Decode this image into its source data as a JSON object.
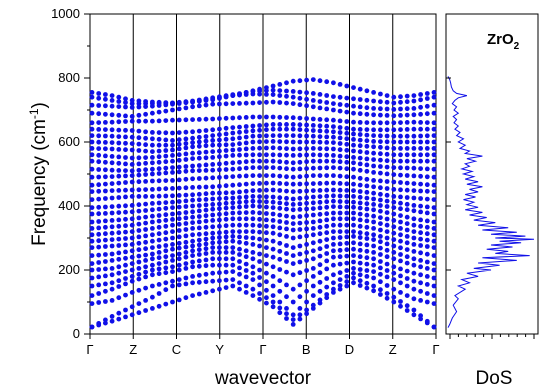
{
  "chart_data": [
    {
      "type": "scatter",
      "panel": "phonon-dispersion",
      "xlabel": "wavevector",
      "ylabel": "Frequency (cm-1)",
      "ylabel_parts": {
        "main": "Frequency (cm",
        "sup": "-1",
        "end": ")"
      },
      "ylim": [
        0,
        1000
      ],
      "yticks": [
        "0",
        "200",
        "400",
        "600",
        "800",
        "1000"
      ],
      "ytick_values": [
        0,
        200,
        400,
        600,
        800,
        1000
      ],
      "kpath": [
        "Γ",
        "Z",
        "C",
        "Y",
        "Γ",
        "B",
        "D",
        "Z",
        "Γ"
      ],
      "marker_color": "#1010e8",
      "grid": false,
      "series": [
        {
          "values": [
            22,
            40,
            60,
            80,
            100,
            120,
            135,
            150,
            120,
            85,
            30,
            80,
            130,
            160,
            135,
            100,
            60,
            22
          ]
        },
        {
          "values": [
            22,
            55,
            85,
            115,
            150,
            160,
            165,
            170,
            140,
            100,
            45,
            90,
            140,
            175,
            150,
            115,
            75,
            22
          ]
        },
        {
          "values": [
            95,
            105,
            130,
            150,
            165,
            180,
            190,
            195,
            170,
            120,
            60,
            120,
            160,
            190,
            175,
            140,
            110,
            95
          ]
        },
        {
          "values": [
            120,
            140,
            165,
            185,
            195,
            210,
            215,
            215,
            190,
            150,
            100,
            150,
            185,
            205,
            195,
            170,
            140,
            120
          ]
        },
        {
          "values": [
            150,
            160,
            180,
            200,
            210,
            225,
            235,
            235,
            210,
            180,
            140,
            180,
            215,
            225,
            215,
            190,
            165,
            150
          ]
        },
        {
          "values": [
            175,
            185,
            200,
            215,
            230,
            245,
            255,
            255,
            235,
            210,
            185,
            205,
            240,
            245,
            235,
            210,
            190,
            175
          ]
        },
        {
          "values": [
            200,
            205,
            220,
            235,
            245,
            260,
            270,
            270,
            255,
            240,
            220,
            235,
            260,
            265,
            255,
            235,
            215,
            200
          ]
        },
        {
          "values": [
            220,
            230,
            240,
            250,
            265,
            275,
            285,
            290,
            280,
            265,
            245,
            260,
            280,
            285,
            275,
            255,
            235,
            220
          ]
        },
        {
          "values": [
            245,
            250,
            260,
            270,
            280,
            290,
            300,
            305,
            300,
            290,
            270,
            285,
            300,
            305,
            295,
            275,
            258,
            245
          ]
        },
        {
          "values": [
            270,
            275,
            280,
            290,
            300,
            310,
            315,
            320,
            320,
            315,
            300,
            310,
            320,
            320,
            310,
            295,
            280,
            270
          ]
        },
        {
          "values": [
            290,
            295,
            300,
            310,
            320,
            330,
            335,
            340,
            340,
            335,
            325,
            330,
            340,
            340,
            330,
            315,
            300,
            290
          ]
        },
        {
          "values": [
            310,
            315,
            320,
            330,
            340,
            348,
            355,
            360,
            360,
            355,
            345,
            350,
            360,
            360,
            350,
            335,
            320,
            310
          ]
        },
        {
          "values": [
            330,
            335,
            340,
            350,
            358,
            365,
            372,
            378,
            380,
            375,
            365,
            372,
            378,
            378,
            368,
            355,
            340,
            330
          ]
        },
        {
          "values": [
            350,
            355,
            360,
            368,
            375,
            382,
            390,
            395,
            400,
            395,
            388,
            392,
            398,
            396,
            388,
            375,
            360,
            350
          ]
        },
        {
          "values": [
            375,
            378,
            382,
            388,
            395,
            400,
            405,
            410,
            415,
            412,
            405,
            410,
            415,
            412,
            405,
            395,
            385,
            375
          ]
        },
        {
          "values": [
            395,
            398,
            402,
            408,
            412,
            418,
            422,
            425,
            430,
            428,
            422,
            428,
            432,
            430,
            422,
            412,
            402,
            395
          ]
        },
        {
          "values": [
            420,
            425,
            430,
            430,
            432,
            435,
            440,
            442,
            448,
            450,
            445,
            448,
            450,
            448,
            440,
            430,
            425,
            420
          ]
        },
        {
          "values": [
            445,
            448,
            450,
            452,
            455,
            458,
            460,
            465,
            470,
            472,
            468,
            470,
            472,
            468,
            460,
            452,
            448,
            445
          ]
        },
        {
          "values": [
            465,
            470,
            475,
            478,
            480,
            485,
            488,
            492,
            495,
            495,
            490,
            495,
            495,
            490,
            480,
            475,
            470,
            465
          ]
        },
        {
          "values": [
            490,
            492,
            495,
            500,
            505,
            510,
            512,
            515,
            520,
            520,
            515,
            518,
            520,
            515,
            505,
            498,
            494,
            490
          ]
        },
        {
          "values": [
            515,
            512,
            510,
            515,
            520,
            525,
            530,
            535,
            540,
            540,
            535,
            540,
            540,
            535,
            525,
            520,
            518,
            515
          ]
        },
        {
          "values": [
            540,
            535,
            530,
            535,
            540,
            548,
            552,
            558,
            560,
            560,
            558,
            560,
            558,
            552,
            545,
            540,
            540,
            540
          ]
        },
        {
          "values": [
            560,
            555,
            550,
            552,
            558,
            565,
            570,
            575,
            580,
            582,
            578,
            580,
            578,
            572,
            565,
            560,
            560,
            560
          ]
        },
        {
          "values": [
            580,
            578,
            575,
            570,
            575,
            585,
            590,
            592,
            600,
            602,
            600,
            600,
            598,
            590,
            585,
            580,
            580,
            580
          ]
        },
        {
          "values": [
            600,
            598,
            595,
            590,
            590,
            598,
            605,
            610,
            618,
            620,
            620,
            618,
            615,
            608,
            602,
            600,
            600,
            600
          ]
        },
        {
          "values": [
            620,
            618,
            615,
            610,
            605,
            612,
            620,
            628,
            635,
            640,
            640,
            636,
            632,
            625,
            620,
            618,
            618,
            620
          ]
        },
        {
          "values": [
            640,
            638,
            636,
            630,
            628,
            632,
            638,
            645,
            650,
            655,
            655,
            652,
            648,
            640,
            638,
            638,
            640,
            640
          ]
        },
        {
          "values": [
            660,
            662,
            665,
            665,
            668,
            670,
            672,
            675,
            678,
            678,
            676,
            672,
            668,
            662,
            660,
            660,
            662,
            660
          ]
        },
        {
          "values": [
            690,
            685,
            680,
            690,
            700,
            710,
            718,
            720,
            722,
            725,
            720,
            710,
            700,
            690,
            685,
            682,
            685,
            690
          ]
        },
        {
          "values": [
            715,
            712,
            708,
            712,
            718,
            725,
            735,
            745,
            750,
            748,
            740,
            730,
            720,
            712,
            705,
            702,
            705,
            715
          ]
        },
        {
          "values": [
            740,
            730,
            720,
            720,
            722,
            728,
            738,
            748,
            758,
            762,
            758,
            752,
            742,
            735,
            728,
            722,
            728,
            740
          ]
        },
        {
          "values": [
            755,
            745,
            730,
            725,
            722,
            725,
            732,
            745,
            760,
            775,
            790,
            795,
            785,
            770,
            755,
            740,
            745,
            755
          ]
        }
      ]
    },
    {
      "type": "line",
      "panel": "density-of-states",
      "title": "ZrO2",
      "title_parts": {
        "main": "ZrO",
        "sub": "2"
      },
      "xlabel": "DoS",
      "ylim": [
        0,
        1000
      ],
      "line_color": "#1010e8",
      "grid": false,
      "points": [
        [
          0,
          20
        ],
        [
          0.02,
          30
        ],
        [
          0.05,
          50
        ],
        [
          0.1,
          70
        ],
        [
          0.06,
          90
        ],
        [
          0.12,
          110
        ],
        [
          0.08,
          120
        ],
        [
          0.2,
          140
        ],
        [
          0.12,
          150
        ],
        [
          0.25,
          160
        ],
        [
          0.16,
          170
        ],
        [
          0.35,
          180
        ],
        [
          0.22,
          190
        ],
        [
          0.5,
          200
        ],
        [
          0.3,
          205
        ],
        [
          0.6,
          215
        ],
        [
          0.35,
          222
        ],
        [
          0.8,
          230
        ],
        [
          0.4,
          238
        ],
        [
          0.95,
          245
        ],
        [
          0.55,
          252
        ],
        [
          0.7,
          258
        ],
        [
          0.45,
          265
        ],
        [
          0.75,
          272
        ],
        [
          0.5,
          278
        ],
        [
          0.85,
          285
        ],
        [
          0.6,
          290
        ],
        [
          1.0,
          296
        ],
        [
          0.55,
          300
        ],
        [
          0.9,
          306
        ],
        [
          0.5,
          312
        ],
        [
          0.8,
          318
        ],
        [
          0.4,
          325
        ],
        [
          0.7,
          332
        ],
        [
          0.35,
          340
        ],
        [
          0.55,
          348
        ],
        [
          0.3,
          356
        ],
        [
          0.45,
          364
        ],
        [
          0.25,
          372
        ],
        [
          0.4,
          380
        ],
        [
          0.2,
          388
        ],
        [
          0.35,
          396
        ],
        [
          0.22,
          404
        ],
        [
          0.3,
          412
        ],
        [
          0.18,
          420
        ],
        [
          0.32,
          428
        ],
        [
          0.2,
          436
        ],
        [
          0.35,
          444
        ],
        [
          0.25,
          452
        ],
        [
          0.4,
          460
        ],
        [
          0.22,
          468
        ],
        [
          0.35,
          476
        ],
        [
          0.2,
          484
        ],
        [
          0.3,
          492
        ],
        [
          0.18,
          500
        ],
        [
          0.28,
          508
        ],
        [
          0.16,
          516
        ],
        [
          0.25,
          524
        ],
        [
          0.2,
          532
        ],
        [
          0.32,
          540
        ],
        [
          0.22,
          548
        ],
        [
          0.4,
          556
        ],
        [
          0.2,
          564
        ],
        [
          0.25,
          572
        ],
        [
          0.14,
          580
        ],
        [
          0.2,
          590
        ],
        [
          0.12,
          600
        ],
        [
          0.18,
          610
        ],
        [
          0.1,
          620
        ],
        [
          0.14,
          630
        ],
        [
          0.08,
          640
        ],
        [
          0.12,
          650
        ],
        [
          0.07,
          660
        ],
        [
          0.1,
          670
        ],
        [
          0.06,
          680
        ],
        [
          0.12,
          690
        ],
        [
          0.07,
          700
        ],
        [
          0.1,
          710
        ],
        [
          0.05,
          720
        ],
        [
          0.08,
          730
        ],
        [
          0.12,
          738
        ],
        [
          0.22,
          745
        ],
        [
          0.1,
          752
        ],
        [
          0.06,
          760
        ],
        [
          0.04,
          772
        ],
        [
          0.03,
          785
        ],
        [
          0.02,
          795
        ],
        [
          0,
          805
        ]
      ]
    }
  ]
}
